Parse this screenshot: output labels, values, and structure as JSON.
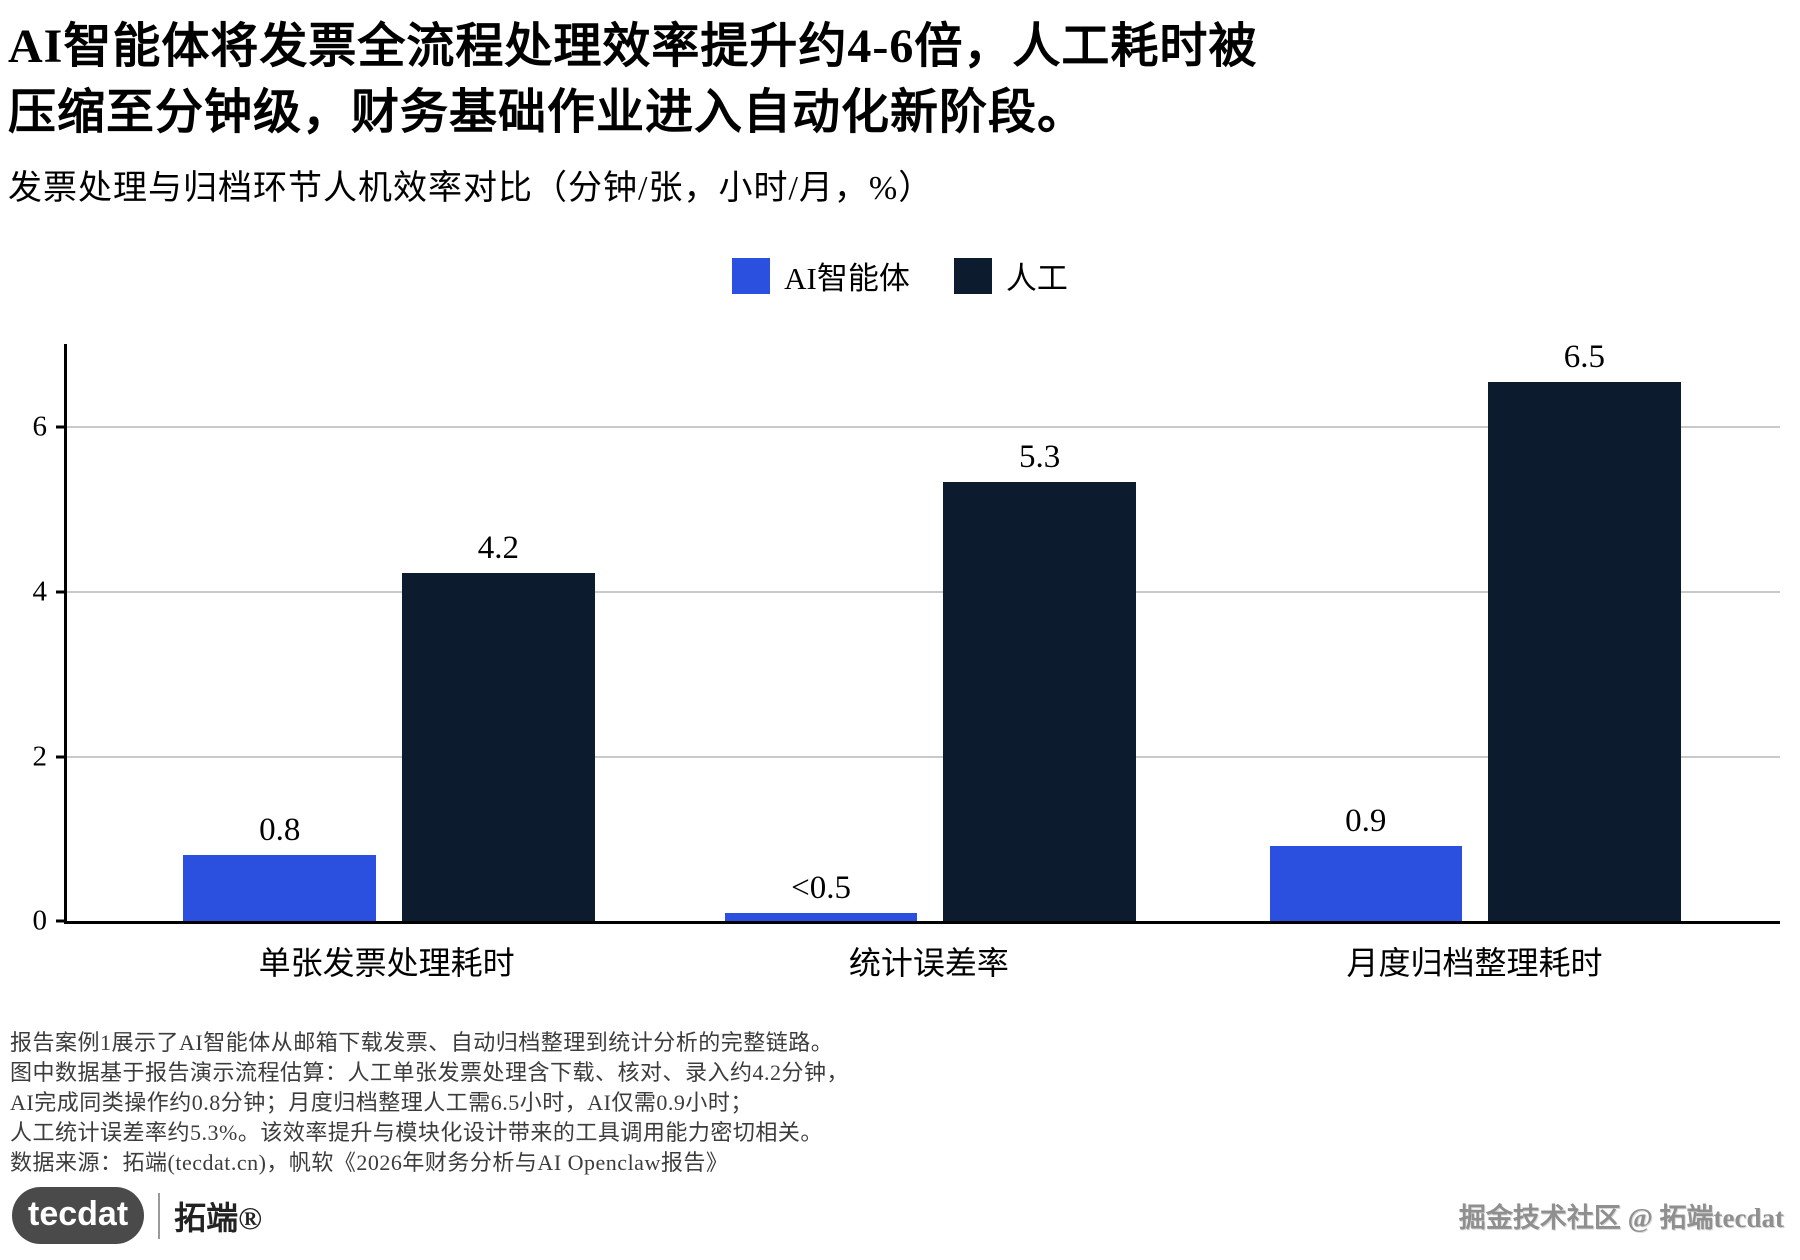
{
  "title": {
    "line1": "AI智能体将发票全流程处理效率提升约4-6倍，人工耗时被",
    "line2": "压缩至分钟级，财务基础作业进入自动化新阶段。"
  },
  "subtitle": "发票处理与归档环节人机效率对比（分钟/张，小时/月，%）",
  "colors": {
    "ai": "#2b50e0",
    "human": "#0d1b2e",
    "grid": "#c9c9c9",
    "axis": "#000000"
  },
  "legend": [
    {
      "label": "AI智能体",
      "color": "#2b50e0"
    },
    {
      "label": "人工",
      "color": "#0d1b2e"
    }
  ],
  "chart_data": {
    "type": "bar",
    "title": "发票处理与归档环节人机效率对比（分钟/张，小时/月，%）",
    "categories": [
      "单张发票处理耗时",
      "统计误差率",
      "月度归档整理耗时"
    ],
    "series": [
      {
        "name": "AI智能体",
        "color": "#2b50e0",
        "values": [
          0.8,
          0.1,
          0.9
        ],
        "labels": [
          "0.8",
          "<0.5",
          "0.9"
        ]
      },
      {
        "name": "人工",
        "color": "#0d1b2e",
        "values": [
          4.2,
          5.3,
          6.5
        ],
        "labels": [
          "4.2",
          "5.3",
          "6.5"
        ]
      }
    ],
    "xlabel": "",
    "ylabel": "",
    "yticks": [
      0,
      2,
      4,
      6
    ],
    "ylim": [
      0,
      7
    ],
    "grid": true,
    "legend_position": "top"
  },
  "footnotes": [
    "报告案例1展示了AI智能体从邮箱下载发票、自动归档整理到统计分析的完整链路。",
    "图中数据基于报告演示流程估算：人工单张发票处理含下载、核对、录入约4.2分钟，",
    "AI完成同类操作约0.8分钟；月度归档整理人工需6.5小时，AI仅需0.9小时；",
    "人工统计误差率约5.3%。该效率提升与模块化设计带来的工具调用能力密切相关。",
    "数据来源：拓端(tecdat.cn)，帆软《2026年财务分析与AI Openclaw报告》"
  ],
  "footer": {
    "logo_text": "tecdat",
    "logo_brand": "拓端®",
    "watermark": "掘金技术社区 @ 拓端tecdat"
  }
}
